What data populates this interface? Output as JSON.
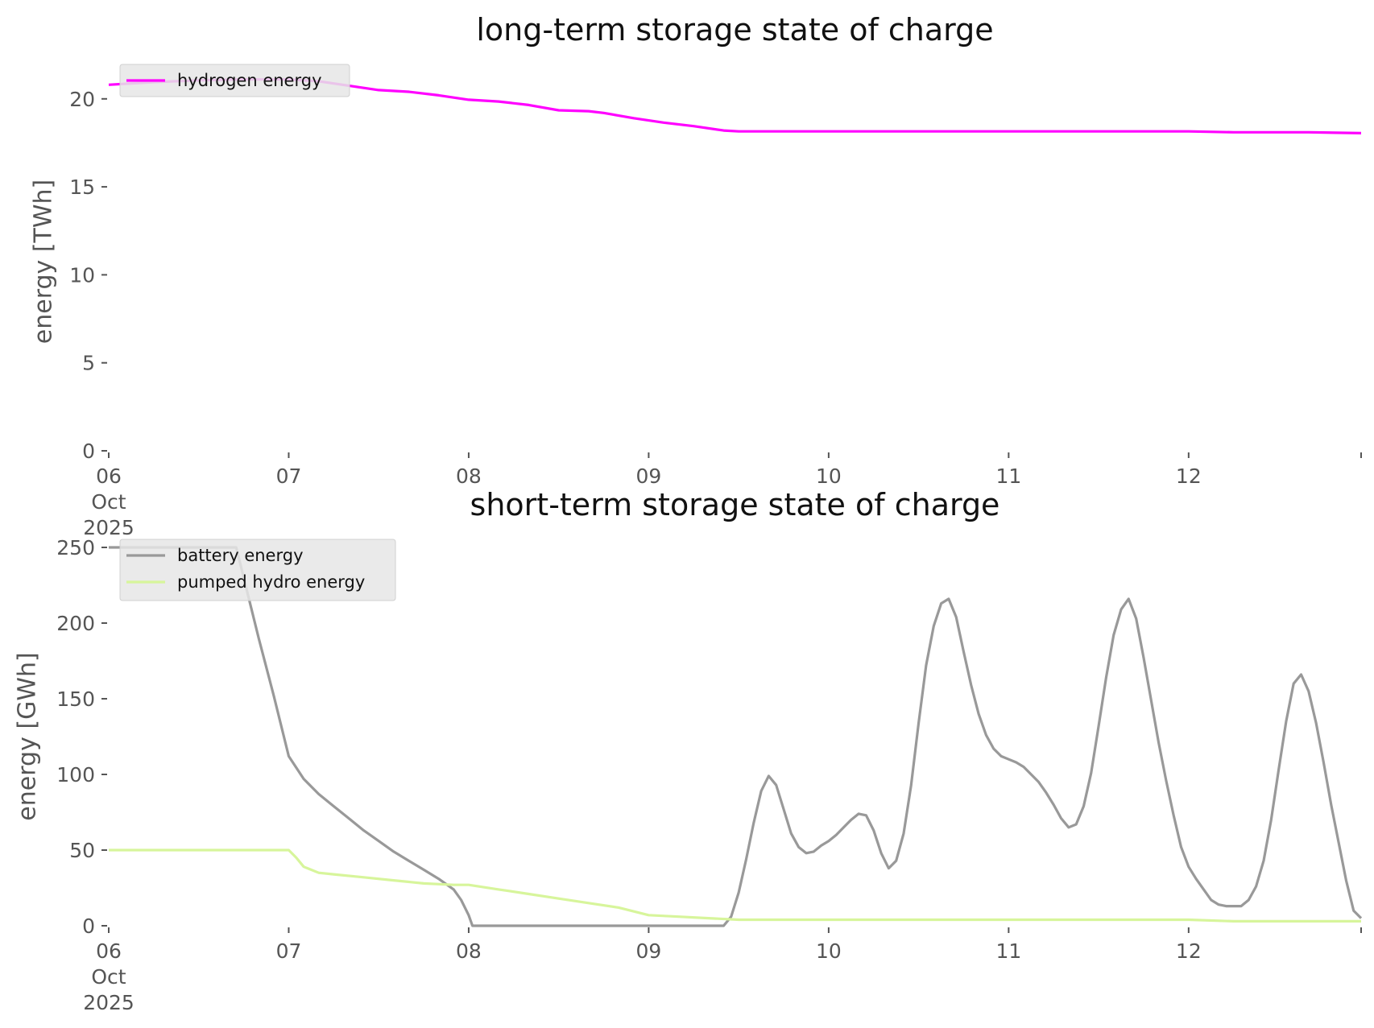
{
  "chart_data": [
    {
      "type": "line",
      "title": "long-term storage state of charge",
      "xlabel": "",
      "ylabel": "energy [TWh]",
      "ylim": [
        0,
        21.5
      ],
      "yticks": [
        0,
        5,
        10,
        15,
        20
      ],
      "xlim": [
        0,
        167
      ],
      "xticks": [
        {
          "x": 0,
          "lines": [
            "06",
            "Oct",
            "2025"
          ]
        },
        {
          "x": 24,
          "lines": [
            "07"
          ]
        },
        {
          "x": 48,
          "lines": [
            "08"
          ]
        },
        {
          "x": 72,
          "lines": [
            "09"
          ]
        },
        {
          "x": 96,
          "lines": [
            "10"
          ]
        },
        {
          "x": 120,
          "lines": [
            "11"
          ]
        },
        {
          "x": 144,
          "lines": [
            "12"
          ]
        },
        {
          "x": 167,
          "lines": [
            ""
          ]
        }
      ],
      "grid": false,
      "legend_position": "top-left",
      "series": [
        {
          "name": "hydrogen energy",
          "color": "#ff00ff",
          "points": [
            [
              0,
              20.8
            ],
            [
              6,
              20.95
            ],
            [
              12,
              21.05
            ],
            [
              18,
              21.1
            ],
            [
              24,
              21.1
            ],
            [
              28,
              21.0
            ],
            [
              32,
              20.75
            ],
            [
              36,
              20.5
            ],
            [
              40,
              20.4
            ],
            [
              44,
              20.2
            ],
            [
              48,
              19.95
            ],
            [
              52,
              19.85
            ],
            [
              56,
              19.65
            ],
            [
              60,
              19.35
            ],
            [
              64,
              19.3
            ],
            [
              66,
              19.2
            ],
            [
              70,
              18.9
            ],
            [
              74,
              18.65
            ],
            [
              78,
              18.45
            ],
            [
              82,
              18.2
            ],
            [
              84,
              18.15
            ],
            [
              96,
              18.15
            ],
            [
              120,
              18.15
            ],
            [
              144,
              18.15
            ],
            [
              150,
              18.1
            ],
            [
              160,
              18.1
            ],
            [
              167,
              18.05
            ]
          ]
        }
      ]
    },
    {
      "type": "line",
      "title": "short-term storage state of charge",
      "xlabel": "",
      "ylabel": "energy [GWh]",
      "ylim": [
        0,
        250
      ],
      "yticks": [
        0,
        50,
        100,
        150,
        200,
        250
      ],
      "xlim": [
        0,
        167
      ],
      "xticks": [
        {
          "x": 0,
          "lines": [
            "06",
            "Oct",
            "2025"
          ]
        },
        {
          "x": 24,
          "lines": [
            "07"
          ]
        },
        {
          "x": 48,
          "lines": [
            "08"
          ]
        },
        {
          "x": 72,
          "lines": [
            "09"
          ]
        },
        {
          "x": 96,
          "lines": [
            "10"
          ]
        },
        {
          "x": 120,
          "lines": [
            "11"
          ]
        },
        {
          "x": 144,
          "lines": [
            "12"
          ]
        },
        {
          "x": 167,
          "lines": [
            ""
          ]
        }
      ],
      "grid": false,
      "legend_position": "top-left",
      "series": [
        {
          "name": "battery energy",
          "color": "#999999",
          "points": [
            [
              0,
              250
            ],
            [
              17,
              250
            ],
            [
              18,
              230
            ],
            [
              20,
              190
            ],
            [
              22,
              152
            ],
            [
              24,
              112
            ],
            [
              26,
              97
            ],
            [
              28,
              87
            ],
            [
              30,
              79
            ],
            [
              32,
              71
            ],
            [
              34,
              63
            ],
            [
              36,
              56
            ],
            [
              38,
              49
            ],
            [
              40,
              43
            ],
            [
              42,
              37
            ],
            [
              44,
              31
            ],
            [
              46,
              24
            ],
            [
              47,
              17
            ],
            [
              48,
              7
            ],
            [
              48.5,
              0
            ],
            [
              82,
              0
            ],
            [
              83,
              6
            ],
            [
              84,
              22
            ],
            [
              85,
              44
            ],
            [
              86,
              68
            ],
            [
              87,
              89
            ],
            [
              88,
              99
            ],
            [
              89,
              93
            ],
            [
              90,
              77
            ],
            [
              91,
              61
            ],
            [
              92,
              52
            ],
            [
              93,
              48
            ],
            [
              94,
              49
            ],
            [
              95,
              53
            ],
            [
              96,
              56
            ],
            [
              97,
              60
            ],
            [
              98,
              65
            ],
            [
              99,
              70
            ],
            [
              100,
              74
            ],
            [
              101,
              73
            ],
            [
              102,
              63
            ],
            [
              103,
              48
            ],
            [
              104,
              38
            ],
            [
              105,
              43
            ],
            [
              106,
              61
            ],
            [
              107,
              93
            ],
            [
              108,
              134
            ],
            [
              109,
              172
            ],
            [
              110,
              198
            ],
            [
              111,
              213
            ],
            [
              112,
              216
            ],
            [
              113,
              204
            ],
            [
              114,
              181
            ],
            [
              115,
              159
            ],
            [
              116,
              140
            ],
            [
              117,
              126
            ],
            [
              118,
              117
            ],
            [
              119,
              112
            ],
            [
              120,
              110
            ],
            [
              121,
              108
            ],
            [
              122,
              105
            ],
            [
              123,
              100
            ],
            [
              124,
              95
            ],
            [
              125,
              88
            ],
            [
              126,
              80
            ],
            [
              127,
              71
            ],
            [
              128,
              65
            ],
            [
              129,
              67
            ],
            [
              130,
              79
            ],
            [
              131,
              101
            ],
            [
              132,
              132
            ],
            [
              133,
              164
            ],
            [
              134,
              192
            ],
            [
              135,
              209
            ],
            [
              136,
              216
            ],
            [
              137,
              203
            ],
            [
              138,
              177
            ],
            [
              139,
              149
            ],
            [
              140,
              121
            ],
            [
              141,
              96
            ],
            [
              142,
              73
            ],
            [
              143,
              52
            ],
            [
              144,
              39
            ],
            [
              145,
              31
            ],
            [
              146,
              24
            ],
            [
              147,
              17
            ],
            [
              148,
              14
            ],
            [
              149,
              13
            ],
            [
              151,
              13
            ],
            [
              152,
              17
            ],
            [
              153,
              26
            ],
            [
              154,
              43
            ],
            [
              155,
              70
            ],
            [
              156,
              103
            ],
            [
              157,
              135
            ],
            [
              158,
              160
            ],
            [
              159,
              166
            ],
            [
              160,
              155
            ],
            [
              161,
              134
            ],
            [
              162,
              108
            ],
            [
              163,
              80
            ],
            [
              164,
              55
            ],
            [
              165,
              30
            ],
            [
              166,
              10
            ],
            [
              167,
              5
            ]
          ]
        },
        {
          "name": "pumped hydro energy",
          "color": "#d7f59b",
          "points": [
            [
              0,
              50
            ],
            [
              24,
              50
            ],
            [
              25,
              45
            ],
            [
              26,
              39
            ],
            [
              28,
              35
            ],
            [
              30,
              34
            ],
            [
              34,
              32
            ],
            [
              38,
              30
            ],
            [
              42,
              28
            ],
            [
              46,
              27
            ],
            [
              48,
              27
            ],
            [
              52,
              24
            ],
            [
              56,
              21
            ],
            [
              60,
              18
            ],
            [
              64,
              15
            ],
            [
              68,
              12
            ],
            [
              72,
              7
            ],
            [
              76,
              6
            ],
            [
              80,
              5
            ],
            [
              84,
              4
            ],
            [
              96,
              4
            ],
            [
              120,
              4
            ],
            [
              144,
              4
            ],
            [
              150,
              3
            ],
            [
              167,
              3
            ]
          ]
        }
      ]
    }
  ]
}
